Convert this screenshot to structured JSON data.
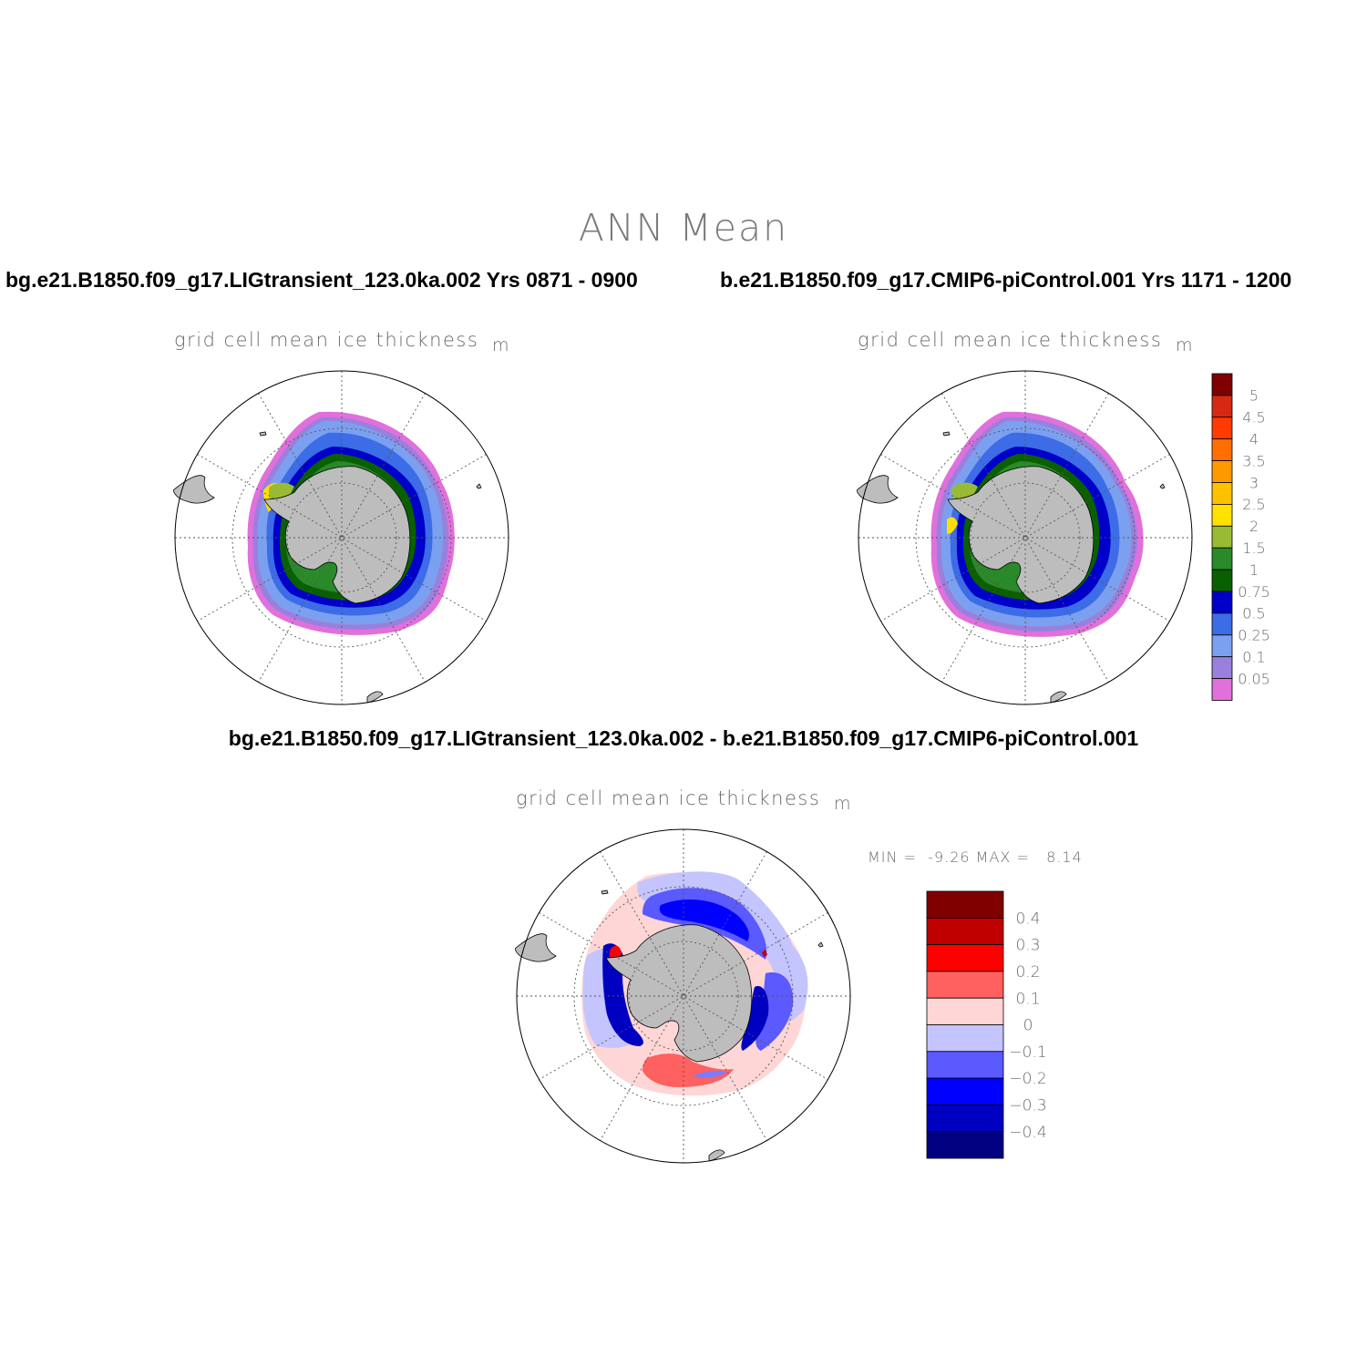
{
  "main_title": "ANN Mean",
  "panels": {
    "left": {
      "case_title": "bg.e21.B1850.f09_g17.LIGtransient_123.0ka.002  Yrs 0871 - 0900",
      "var_title": "grid cell mean ice thickness",
      "unit": "m"
    },
    "right": {
      "case_title": "b.e21.B1850.f09_g17.CMIP6-piControl.001  Yrs 1171 - 1200",
      "var_title": "grid cell mean ice thickness",
      "unit": "m"
    },
    "diff": {
      "case_title": "bg.e21.B1850.f09_g17.LIGtransient_123.0ka.002 - b.e21.B1850.f09_g17.CMIP6-piControl.001",
      "var_title": "grid cell mean ice thickness",
      "unit": "m",
      "min_label": "MIN = ",
      "min_value": "-9.26",
      "max_label": " MAX = ",
      "max_value": "8.14"
    }
  },
  "colorbar_abs": {
    "labels": [
      "5",
      "4.5",
      "4",
      "3.5",
      "3",
      "2.5",
      "2",
      "1.5",
      "1",
      "0.75",
      "0.5",
      "0.25",
      "0.1",
      "0.05"
    ],
    "colors_top_to_bottom": [
      "#7f0000",
      "#d42a14",
      "#ff3c00",
      "#ff6e00",
      "#ff9900",
      "#ffc000",
      "#ffe000",
      "#99bb33",
      "#2a8a2a",
      "#0a6000",
      "#0000c8",
      "#3c6ce6",
      "#7ca0f0",
      "#9a80dc",
      "#e070dc"
    ]
  },
  "colorbar_diff": {
    "labels": [
      "0.4",
      "0.3",
      "0.2",
      "0.1",
      "0",
      "-0.1",
      "-0.2",
      "-0.3",
      "-0.4"
    ],
    "colors_top_to_bottom": [
      "#800000",
      "#c00000",
      "#ff0000",
      "#ff6060",
      "#ffd6d6",
      "#c4c4ff",
      "#5a5aff",
      "#0000ff",
      "#0000c0",
      "#000080"
    ]
  }
}
